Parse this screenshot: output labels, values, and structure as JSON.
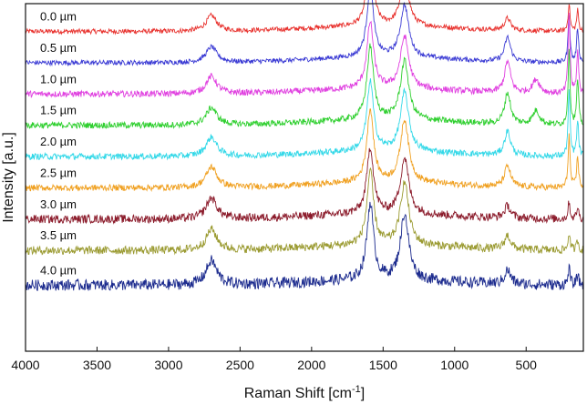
{
  "chart_data": {
    "type": "line",
    "title": "",
    "xlabel_main": "Raman Shift [cm",
    "xlabel_sup": "-1",
    "xlabel_tail": "]",
    "ylabel": "Intensity [a.u.]",
    "xlim": [
      4000,
      100
    ],
    "x_reversed": true,
    "ylim": [
      0,
      10
    ],
    "y_ticks_labeled": false,
    "x_ticks": [
      {
        "value": 4000,
        "label": "4000"
      },
      {
        "value": 3500,
        "label": "3500"
      },
      {
        "value": 3000,
        "label": "3000"
      },
      {
        "value": 2500,
        "label": "2500"
      },
      {
        "value": 2000,
        "label": "2000"
      },
      {
        "value": 1500,
        "label": "1500"
      },
      {
        "value": 1000,
        "label": "1000"
      },
      {
        "value": 500,
        "label": "500"
      }
    ],
    "peaks_cm1": [
      2700,
      1590,
      1350,
      630,
      200,
      140
    ],
    "series": [
      {
        "name": "0.0 µm",
        "color": "#e8322e",
        "baseline": 9.2,
        "noise": 0.07,
        "peaks": [
          {
            "x": 2700,
            "h": 0.45
          },
          {
            "x": 1590,
            "h": 2.0
          },
          {
            "x": 1350,
            "h": 1.4
          },
          {
            "x": 630,
            "h": 0.35
          },
          {
            "x": 200,
            "h": 0.8
          },
          {
            "x": 140,
            "h": 0.6
          }
        ]
      },
      {
        "name": "0.5 µm",
        "color": "#3a3ad4",
        "baseline": 8.3,
        "noise": 0.07,
        "peaks": [
          {
            "x": 2700,
            "h": 0.45
          },
          {
            "x": 1590,
            "h": 2.0
          },
          {
            "x": 1350,
            "h": 1.5
          },
          {
            "x": 630,
            "h": 0.7
          },
          {
            "x": 200,
            "h": 1.4
          },
          {
            "x": 140,
            "h": 1.0
          }
        ]
      },
      {
        "name": "1.0 µm",
        "color": "#e040e0",
        "baseline": 7.4,
        "noise": 0.09,
        "peaks": [
          {
            "x": 2700,
            "h": 0.5
          },
          {
            "x": 1590,
            "h": 1.9
          },
          {
            "x": 1350,
            "h": 1.5
          },
          {
            "x": 630,
            "h": 0.9
          },
          {
            "x": 430,
            "h": 0.4
          },
          {
            "x": 200,
            "h": 2.3
          },
          {
            "x": 140,
            "h": 1.2
          }
        ]
      },
      {
        "name": "1.5 µm",
        "color": "#2ecf2e",
        "baseline": 6.5,
        "noise": 0.09,
        "peaks": [
          {
            "x": 2700,
            "h": 0.5
          },
          {
            "x": 1590,
            "h": 2.1
          },
          {
            "x": 1350,
            "h": 1.7
          },
          {
            "x": 630,
            "h": 0.9
          },
          {
            "x": 430,
            "h": 0.4
          },
          {
            "x": 200,
            "h": 2.2
          },
          {
            "x": 140,
            "h": 1.3
          }
        ]
      },
      {
        "name": "2.0 µm",
        "color": "#32d8e8",
        "baseline": 5.6,
        "noise": 0.09,
        "peaks": [
          {
            "x": 2700,
            "h": 0.55
          },
          {
            "x": 1590,
            "h": 2.0
          },
          {
            "x": 1350,
            "h": 1.7
          },
          {
            "x": 630,
            "h": 0.7
          },
          {
            "x": 200,
            "h": 1.9
          },
          {
            "x": 140,
            "h": 1.0
          }
        ]
      },
      {
        "name": "2.5 µm",
        "color": "#f0a020",
        "baseline": 4.7,
        "noise": 0.09,
        "peaks": [
          {
            "x": 2700,
            "h": 0.6
          },
          {
            "x": 1590,
            "h": 2.1
          },
          {
            "x": 1350,
            "h": 1.8
          },
          {
            "x": 630,
            "h": 0.6
          },
          {
            "x": 200,
            "h": 1.5
          },
          {
            "x": 140,
            "h": 0.9
          }
        ]
      },
      {
        "name": "3.0 µm",
        "color": "#8b1a2a",
        "baseline": 3.8,
        "noise": 0.12,
        "peaks": [
          {
            "x": 2700,
            "h": 0.6
          },
          {
            "x": 1590,
            "h": 1.9
          },
          {
            "x": 1350,
            "h": 1.6
          },
          {
            "x": 630,
            "h": 0.35
          },
          {
            "x": 200,
            "h": 0.5
          },
          {
            "x": 140,
            "h": 0.35
          }
        ]
      },
      {
        "name": "3.5 µm",
        "color": "#9a9a30",
        "baseline": 2.9,
        "noise": 0.12,
        "peaks": [
          {
            "x": 2700,
            "h": 0.6
          },
          {
            "x": 1590,
            "h": 2.1
          },
          {
            "x": 1350,
            "h": 1.8
          },
          {
            "x": 630,
            "h": 0.4
          },
          {
            "x": 200,
            "h": 0.5
          },
          {
            "x": 140,
            "h": 0.3
          }
        ]
      },
      {
        "name": "4.0 µm",
        "color": "#1c2b8e",
        "baseline": 1.9,
        "noise": 0.16,
        "peaks": [
          {
            "x": 2700,
            "h": 0.7
          },
          {
            "x": 1590,
            "h": 2.2
          },
          {
            "x": 1350,
            "h": 1.9
          },
          {
            "x": 630,
            "h": 0.4
          },
          {
            "x": 200,
            "h": 0.5
          },
          {
            "x": 140,
            "h": 0.3
          }
        ]
      }
    ]
  }
}
